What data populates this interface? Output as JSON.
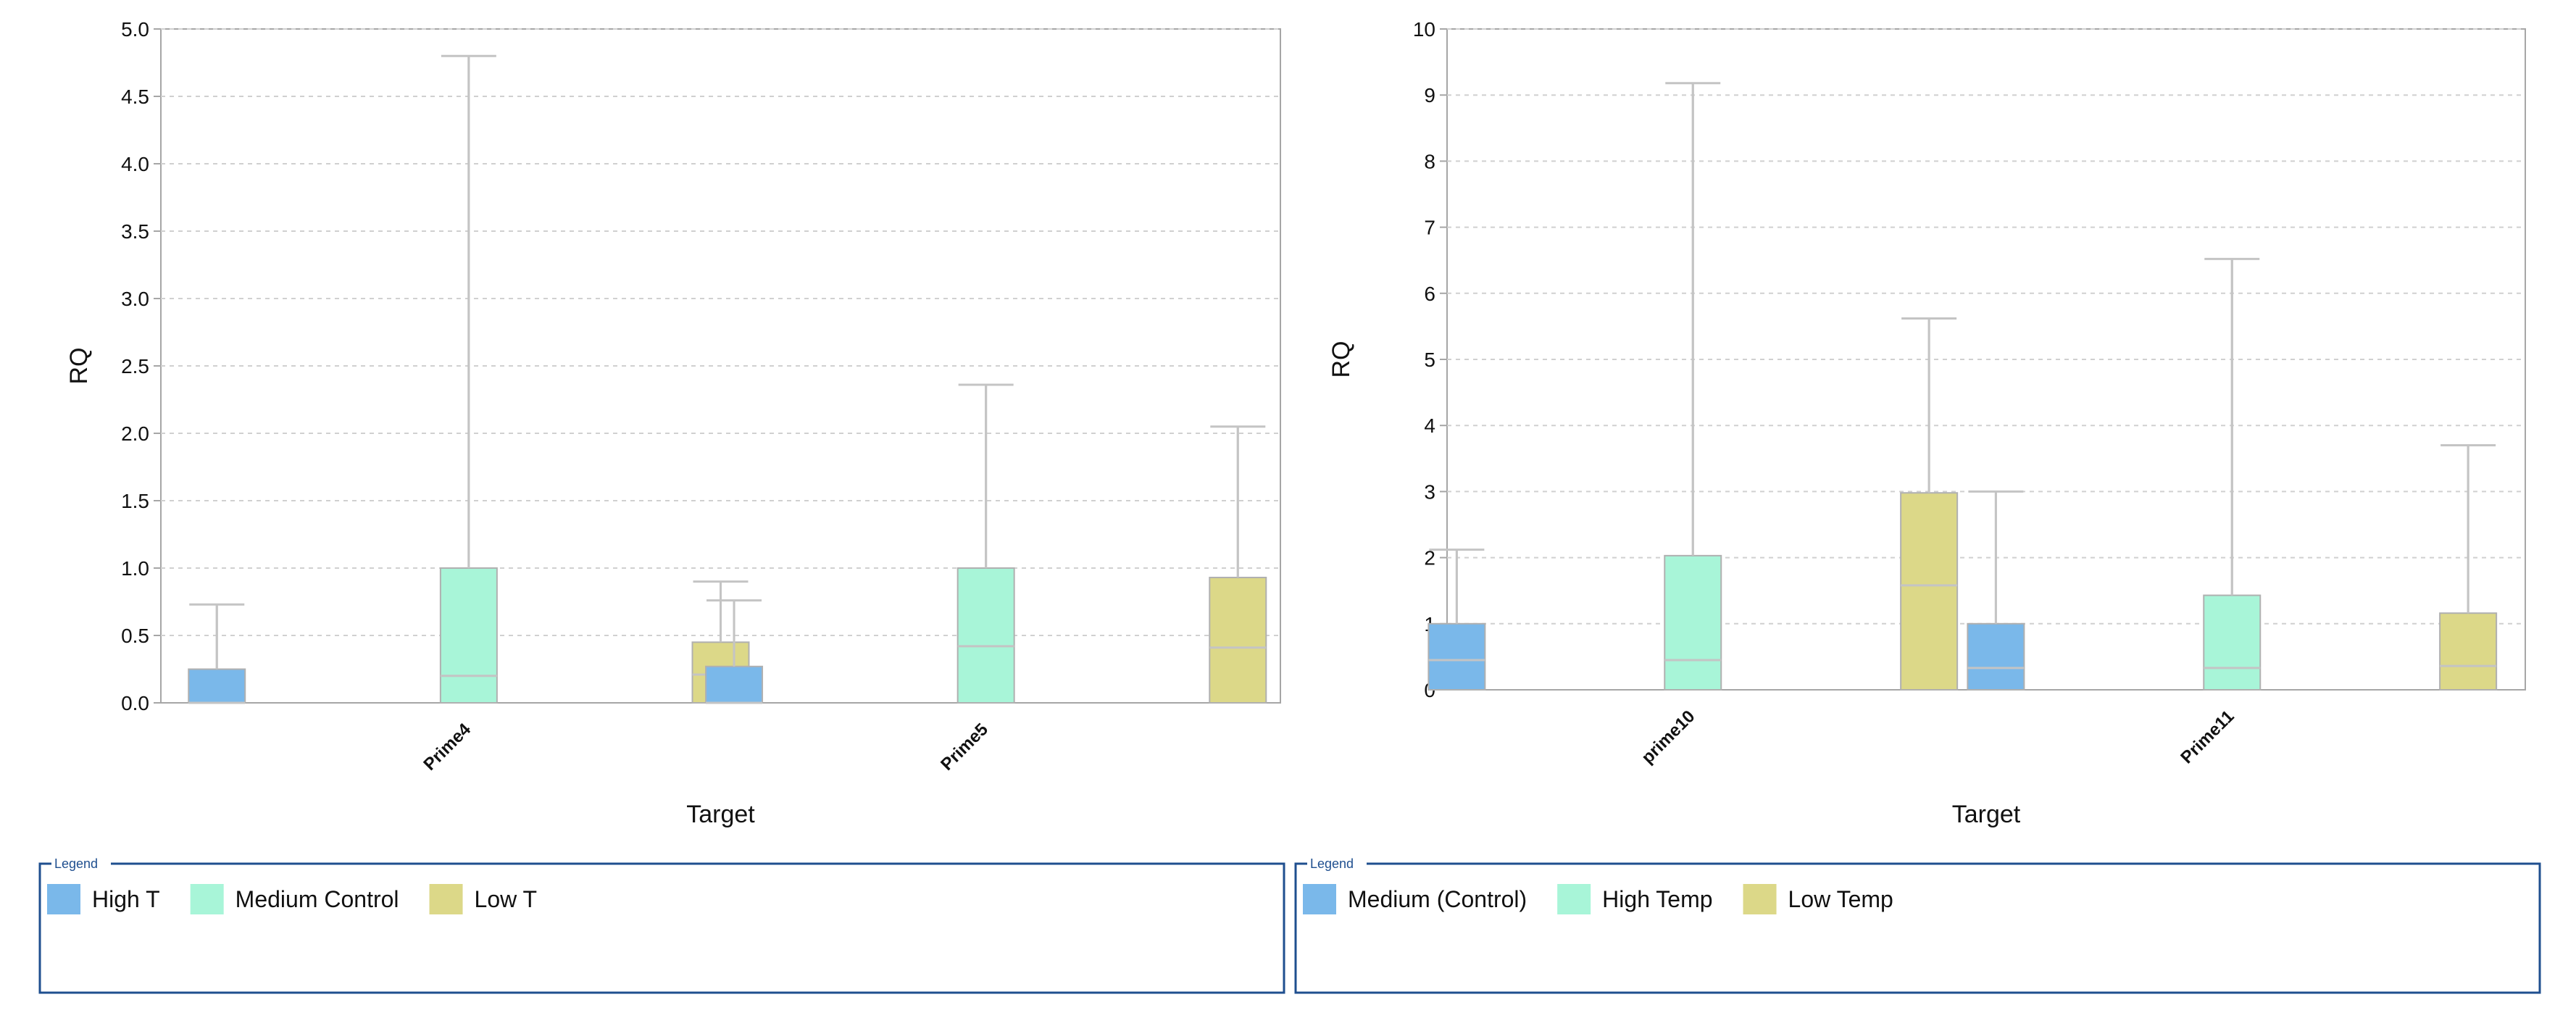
{
  "chart_data": [
    {
      "type": "bar",
      "title": "",
      "xlabel": "Target",
      "ylabel": "RQ",
      "ylim": [
        0,
        5.0
      ],
      "yticks": [
        0.0,
        0.5,
        1.0,
        1.5,
        2.0,
        2.5,
        3.0,
        3.5,
        4.0,
        4.5,
        5.0
      ],
      "ytick_labels": [
        "0.0",
        "0.5",
        "1.0",
        "1.5",
        "2.0",
        "2.5",
        "3.0",
        "3.5",
        "4.0",
        "4.5",
        "5.0"
      ],
      "grid": true,
      "error_bars": true,
      "categories": [
        "Prime4",
        "Prime5"
      ],
      "series": [
        {
          "name": "High T",
          "color": "#7ab8ea",
          "values": [
            0.25,
            0.27
          ],
          "lower": [
            0.0,
            0.0
          ],
          "upper": [
            0.73,
            0.76
          ]
        },
        {
          "name": "Medium Control",
          "color": "#a8f5d8",
          "values": [
            1.0,
            1.0
          ],
          "lower": [
            0.2,
            0.42
          ],
          "upper": [
            4.8,
            2.36
          ]
        },
        {
          "name": "Low T",
          "color": "#dcd888",
          "values": [
            0.45,
            0.93
          ],
          "lower": [
            0.21,
            0.41
          ],
          "upper": [
            0.9,
            2.05
          ]
        }
      ],
      "legend": {
        "title": "Legend",
        "position": "bottom",
        "entries": [
          "High T",
          "Medium Control",
          "Low T"
        ]
      }
    },
    {
      "type": "bar",
      "title": "",
      "xlabel": "Target",
      "ylabel": "RQ",
      "ylim": [
        0,
        10
      ],
      "yticks": [
        0,
        1,
        2,
        3,
        4,
        5,
        6,
        7,
        8,
        9,
        10
      ],
      "ytick_labels": [
        "0",
        "1",
        "2",
        "3",
        "4",
        "5",
        "6",
        "7",
        "8",
        "9",
        "10"
      ],
      "grid": true,
      "error_bars": true,
      "categories": [
        "prime10",
        "Prime11"
      ],
      "series": [
        {
          "name": "Medium (Control)",
          "color": "#7ab8ea",
          "values": [
            1.0,
            1.0
          ],
          "lower": [
            0.45,
            0.33
          ],
          "upper": [
            2.12,
            3.0
          ]
        },
        {
          "name": "High Temp",
          "color": "#a8f5d8",
          "values": [
            2.03,
            1.43
          ],
          "lower": [
            0.45,
            0.33
          ],
          "upper": [
            9.18,
            6.52
          ]
        },
        {
          "name": "Low Temp",
          "color": "#dcd888",
          "values": [
            2.98,
            1.16
          ],
          "lower": [
            1.58,
            0.36
          ],
          "upper": [
            5.62,
            3.7
          ]
        }
      ],
      "legend": {
        "title": "Legend",
        "position": "bottom",
        "entries": [
          "Medium (Control)",
          "High Temp",
          "Low Temp"
        ]
      }
    }
  ]
}
